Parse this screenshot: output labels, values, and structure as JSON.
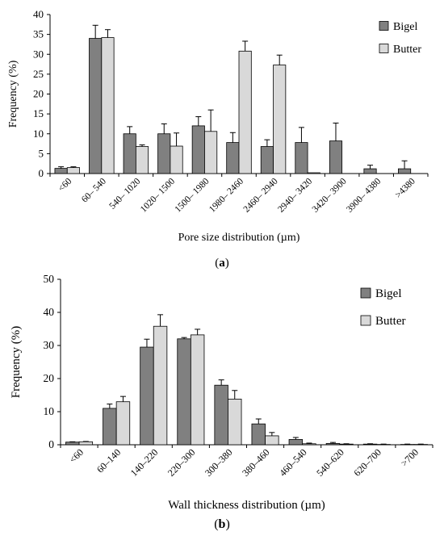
{
  "chart_data": [
    {
      "type": "bar",
      "panel_label": "a",
      "xlabel": "Pore size distribution (µm)",
      "ylabel": "Frequency (%)",
      "ylim": [
        0,
        40
      ],
      "yticks": [
        0,
        5,
        10,
        15,
        20,
        25,
        30,
        35,
        40
      ],
      "legend": "top-right",
      "categories": [
        "<60",
        "60– 540",
        "540– 1020",
        "1020– 1500",
        "1500– 1980",
        "1980– 2460",
        "2460– 2940",
        "2940– 3420",
        "3420– 3900",
        "3900– 4380",
        ">4380"
      ],
      "series": [
        {
          "name": "Bigel",
          "color": "#808080",
          "values": [
            1.3,
            34,
            10,
            10,
            12,
            7.8,
            6.8,
            7.8,
            8.2,
            1.2,
            1.2
          ],
          "errors": [
            0.4,
            3.3,
            1.8,
            2.5,
            2.3,
            2.5,
            1.7,
            3.8,
            4.5,
            0.9,
            2.0
          ]
        },
        {
          "name": "Butter",
          "color": "#d9d9d9",
          "values": [
            1.5,
            34.2,
            6.8,
            6.9,
            10.6,
            30.8,
            27.3,
            0.2,
            0,
            0,
            0
          ],
          "errors": [
            0.2,
            2.0,
            0.4,
            3.3,
            5.4,
            2.5,
            2.5,
            0,
            0,
            0,
            0
          ]
        }
      ]
    },
    {
      "type": "bar",
      "panel_label": "b",
      "xlabel": "Wall thickness distribution (µm)",
      "ylabel": "Frequency (%)",
      "ylim": [
        0,
        50
      ],
      "yticks": [
        0,
        10,
        20,
        30,
        40,
        50
      ],
      "legend": "top-right",
      "categories": [
        "<60",
        "60–140",
        "140–220",
        "220–300",
        "300–380",
        "380–460",
        "460–540",
        "540–620",
        "620–700",
        ">700"
      ],
      "series": [
        {
          "name": "Bigel",
          "color": "#808080",
          "values": [
            0.8,
            11,
            29.5,
            32,
            18,
            6.3,
            1.6,
            0.4,
            0.2,
            0.1
          ],
          "errors": [
            0.1,
            1.3,
            2.4,
            0.4,
            1.6,
            1.5,
            0.6,
            0.3,
            0.1,
            0.1
          ]
        },
        {
          "name": "Butter",
          "color": "#d9d9d9",
          "values": [
            0.9,
            13,
            35.8,
            33.2,
            13.8,
            2.7,
            0.3,
            0.2,
            0.1,
            0.1
          ],
          "errors": [
            0.1,
            1.6,
            3.5,
            1.7,
            2.6,
            1.0,
            0.2,
            0.1,
            0.1,
            0.1
          ]
        }
      ]
    }
  ]
}
